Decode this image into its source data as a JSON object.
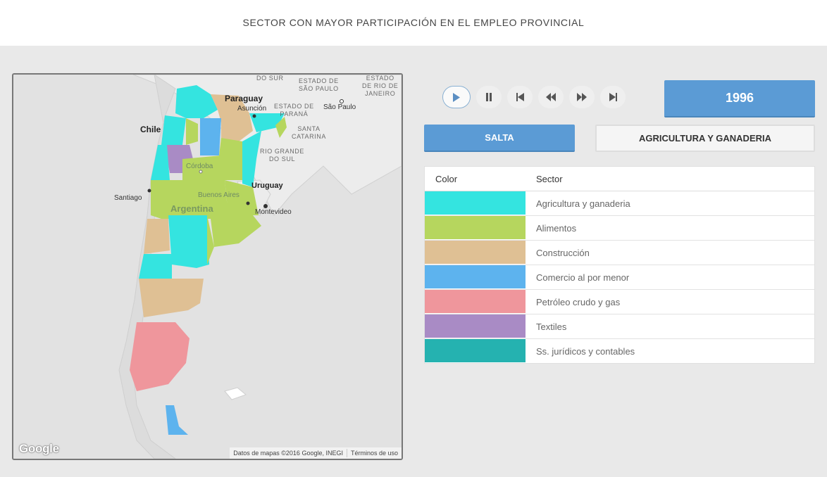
{
  "header": {
    "title": "SECTOR CON MAYOR PARTICIPACIÓN EN EL EMPLEO PROVINCIAL"
  },
  "map": {
    "labels": {
      "paraguay": "Paraguay",
      "asuncion": "Asunción",
      "chile": "Chile",
      "santiago": "Santiago",
      "argentina": "Argentina",
      "cordoba": "Córdoba",
      "buenos_aires": "Buenos Aires",
      "uruguay": "Uruguay",
      "montevideo": "Montevideo",
      "sao_paulo": "São Paulo",
      "estado_sp": "ESTADO DE\nSÃO PAULO",
      "estado_pr": "ESTADO DE\nPARANÁ",
      "estado_rj": "ESTADO\nDE RIO DE\nJANEIRO",
      "santa_catarina": "SANTA\nCATARINA",
      "rio_grande": "RIO GRANDE\nDO SUL",
      "do_sur_top": "DO SUR"
    },
    "google_logo": "Google",
    "attribution": "Datos de mapas ©2016 Google, INEGI",
    "terms": "Términos de uso"
  },
  "controls": {
    "play": "play-icon",
    "pause": "pause-icon",
    "first": "skip-back-icon",
    "prev": "rewind-icon",
    "next": "fast-forward-icon",
    "last": "skip-forward-icon"
  },
  "year": "1996",
  "province_button": "SALTA",
  "sector_button": "AGRICULTURA Y GANADERIA",
  "legend": {
    "header_color": "Color",
    "header_sector": "Sector",
    "items": [
      {
        "label": "Agricultura y ganaderia",
        "color": "#34e4e0"
      },
      {
        "label": "Alimentos",
        "color": "#b6d65e"
      },
      {
        "label": "Construcción",
        "color": "#dfc094"
      },
      {
        "label": "Comercio al por menor",
        "color": "#5db3ee"
      },
      {
        "label": "Petróleo crudo y gas",
        "color": "#ef969c"
      },
      {
        "label": "Textiles",
        "color": "#a98bc5"
      },
      {
        "label": "Ss. jurídicos y contables",
        "color": "#25b2b0"
      }
    ]
  }
}
